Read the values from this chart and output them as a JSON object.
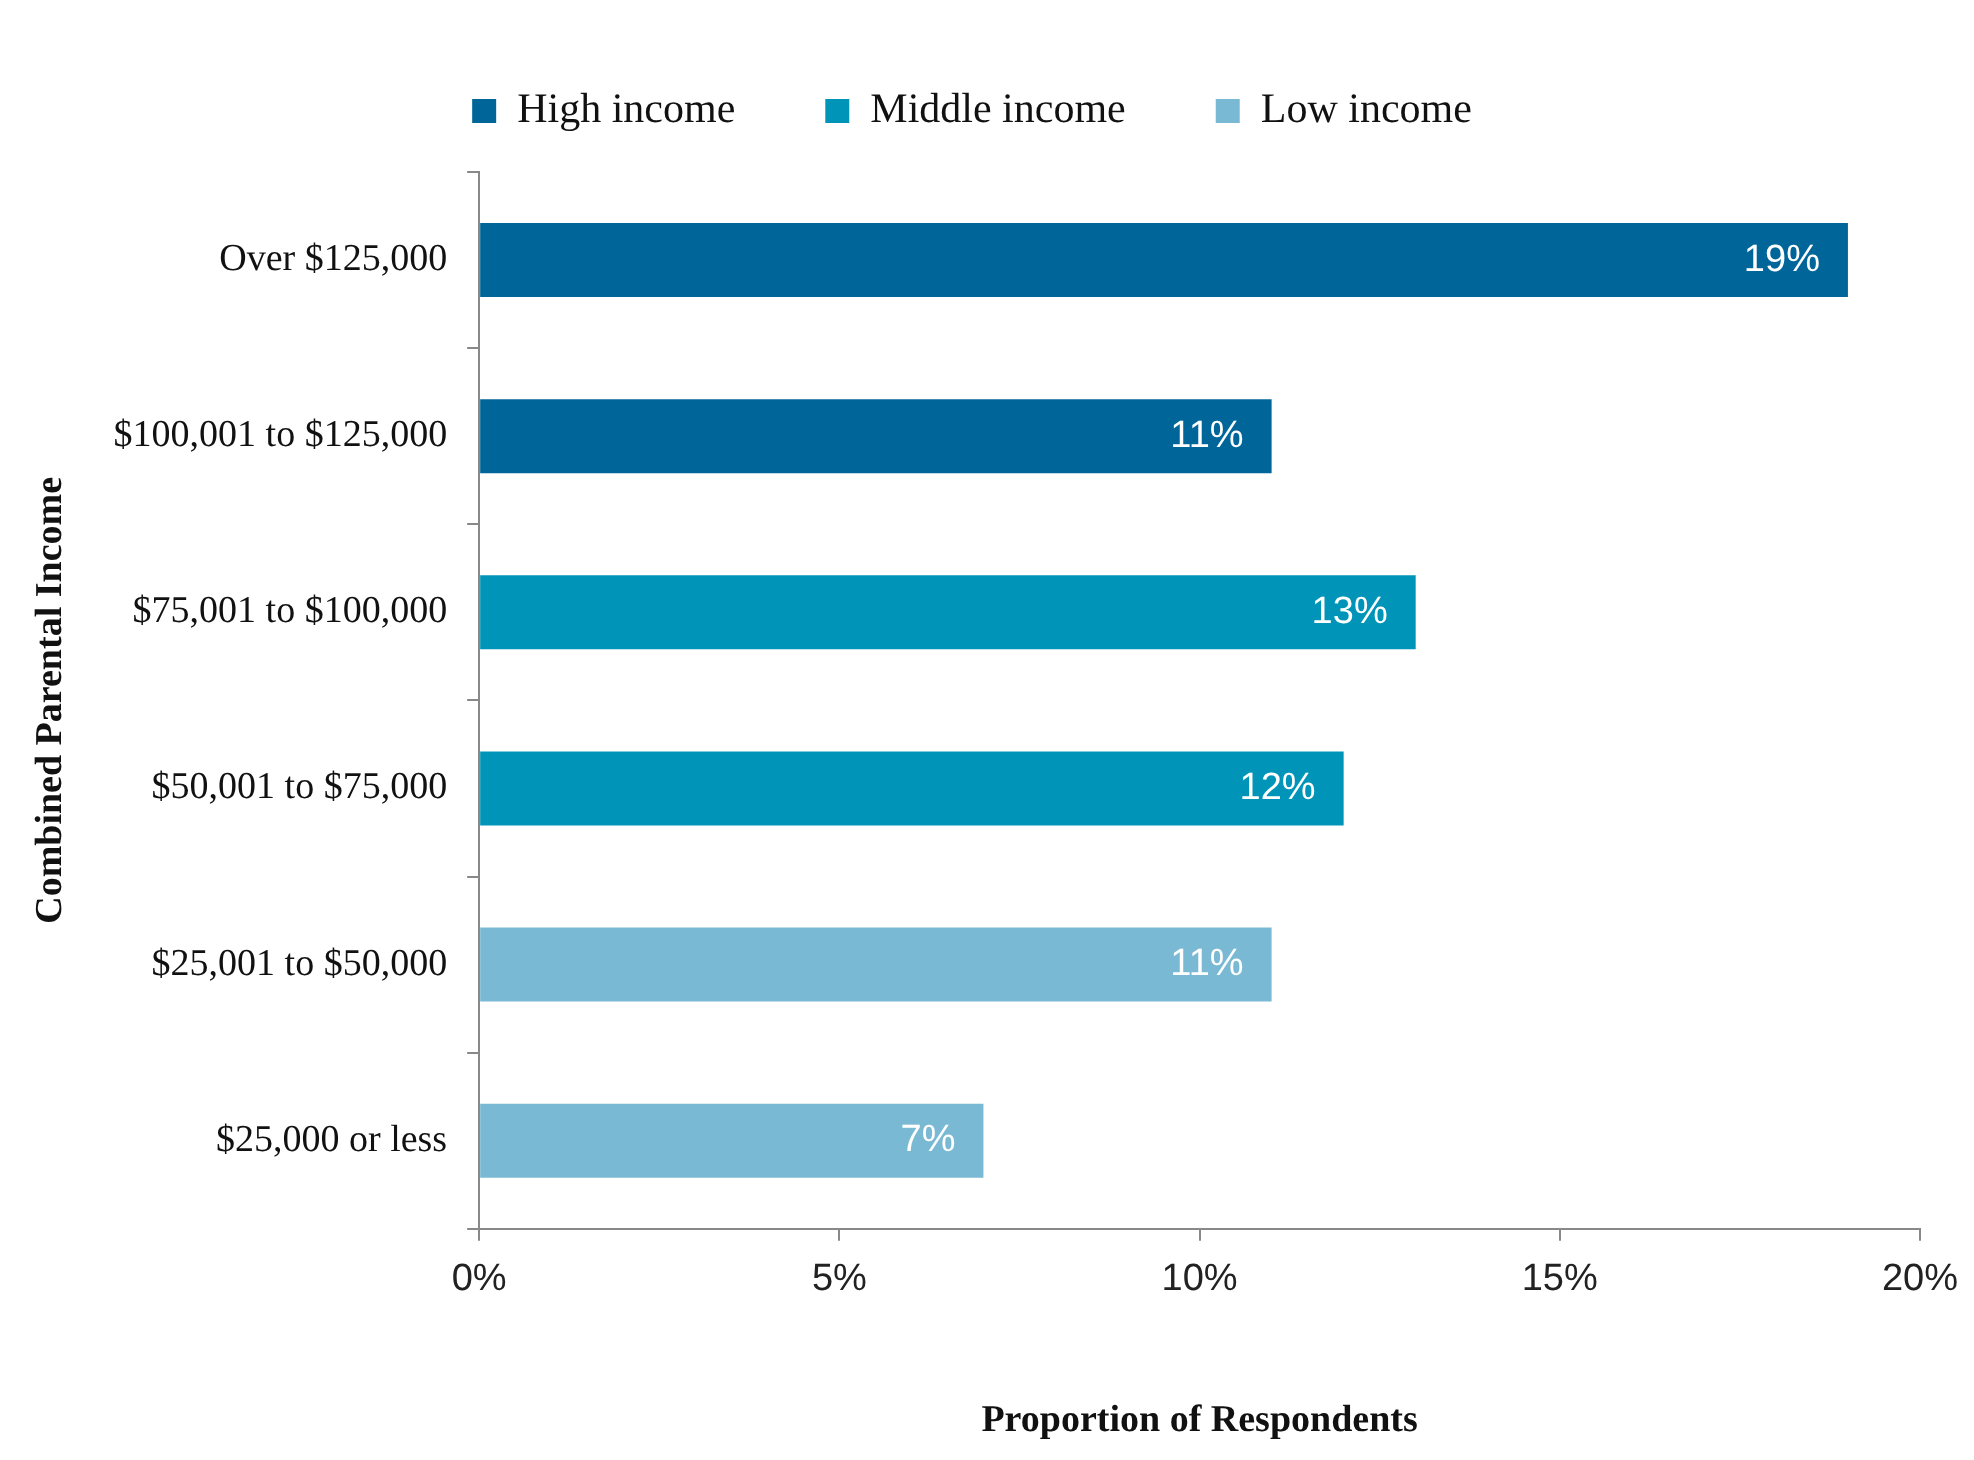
{
  "chart_data": {
    "type": "bar",
    "orientation": "horizontal",
    "categories": [
      "Over $125,000",
      "$100,001 to $125,000",
      "$75,001 to $100,000",
      "$50,001 to $75,000",
      "$25,001 to $50,000",
      "$25,000 or less"
    ],
    "series": [
      {
        "name": "High income",
        "color": "#006699",
        "values": [
          19,
          11,
          null,
          null,
          null,
          null
        ],
        "value_labels": [
          "19%",
          "11%",
          null,
          null,
          null,
          null
        ]
      },
      {
        "name": "Middle income",
        "color": "#0095b8",
        "values": [
          null,
          null,
          13,
          12,
          null,
          null
        ],
        "value_labels": [
          null,
          null,
          "13%",
          "12%",
          null,
          null
        ]
      },
      {
        "name": "Low income",
        "color": "#7ab9d4",
        "values": [
          null,
          null,
          null,
          null,
          11,
          7
        ],
        "value_labels": [
          null,
          null,
          null,
          null,
          "11%",
          "7%"
        ]
      }
    ],
    "xlim": [
      0,
      20
    ],
    "xticks": [
      {
        "value": 0,
        "label": "0%"
      },
      {
        "value": 5,
        "label": "5%"
      },
      {
        "value": 10,
        "label": "10%"
      },
      {
        "value": 15,
        "label": "15%"
      },
      {
        "value": 20,
        "label": "20%"
      }
    ],
    "xlabel": "Proportion of Respondents",
    "ylabel": "Combined Parental Income",
    "grid": false,
    "legend": "top"
  }
}
